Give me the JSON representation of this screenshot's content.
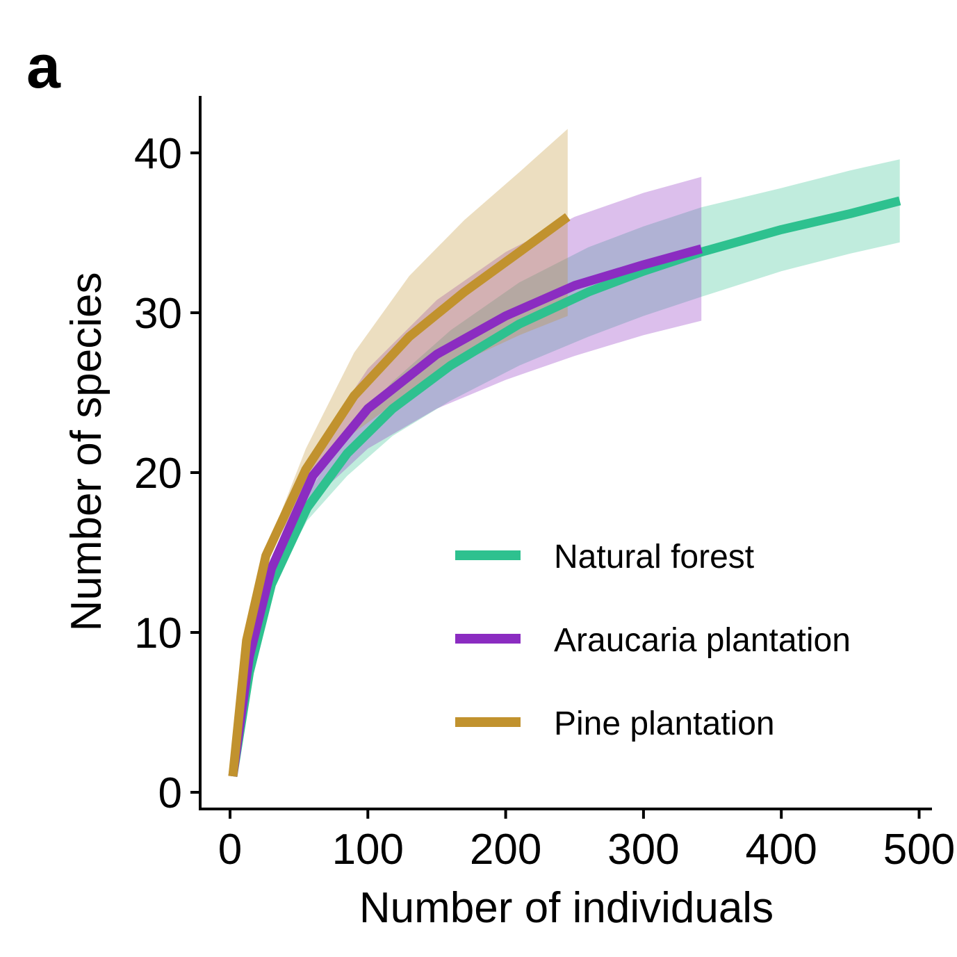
{
  "panel_label": "a",
  "chart_data": {
    "type": "line",
    "title": "",
    "xlabel": "Number of individuals",
    "ylabel": "Number of species",
    "xlim": [
      -22,
      505
    ],
    "ylim": [
      -1,
      43.5
    ],
    "xticks": [
      0,
      100,
      200,
      300,
      400,
      500
    ],
    "yticks": [
      0,
      10,
      20,
      30,
      40
    ],
    "xtick_labels": [
      "0",
      "100",
      "200",
      "300",
      "400",
      "500"
    ],
    "ytick_labels": [
      "0",
      "10",
      "20",
      "30",
      "40"
    ],
    "grid": false,
    "legend_position": "bottom-right",
    "series": [
      {
        "name": "Natural forest",
        "color": "#2EC18F",
        "x": [
          2,
          14,
          30,
          56,
          85,
          118,
          160,
          210,
          260,
          300,
          342,
          400,
          450,
          486
        ],
        "y": [
          1.0,
          7.5,
          13.0,
          17.8,
          21.2,
          24.0,
          26.7,
          29.3,
          31.3,
          32.6,
          33.8,
          35.2,
          36.2,
          37.0
        ],
        "lower": [
          1.0,
          7.2,
          12.8,
          17.0,
          19.8,
          22.3,
          24.5,
          26.7,
          28.5,
          29.8,
          31.0,
          32.6,
          33.7,
          34.4
        ],
        "upper": [
          1.0,
          7.8,
          13.2,
          18.6,
          22.6,
          25.7,
          28.9,
          31.9,
          34.1,
          35.4,
          36.6,
          37.8,
          38.9,
          39.6
        ]
      },
      {
        "name": "Araucaria plantation",
        "color": "#8B2CC1",
        "x": [
          2,
          14,
          30,
          60,
          100,
          150,
          200,
          250,
          300,
          342
        ],
        "y": [
          1.0,
          8.5,
          14.0,
          19.8,
          24.0,
          27.4,
          29.8,
          31.7,
          33.0,
          34.0
        ],
        "lower": [
          1.0,
          8.2,
          13.5,
          18.3,
          21.5,
          24.0,
          25.8,
          27.3,
          28.6,
          29.5
        ],
        "upper": [
          1.0,
          8.8,
          14.5,
          21.3,
          26.5,
          30.8,
          33.8,
          36.0,
          37.5,
          38.5
        ]
      },
      {
        "name": "Pine plantation",
        "color": "#C1922E",
        "x": [
          2,
          12,
          26,
          55,
          90,
          130,
          170,
          210,
          245
        ],
        "y": [
          1.0,
          9.5,
          14.8,
          20.2,
          24.8,
          28.5,
          31.3,
          33.8,
          36.0
        ],
        "lower": [
          1.0,
          9.3,
          14.5,
          19.0,
          22.5,
          25.0,
          27.0,
          28.6,
          29.8
        ],
        "upper": [
          1.0,
          9.7,
          15.1,
          21.5,
          27.5,
          32.3,
          35.8,
          38.8,
          41.5
        ]
      }
    ]
  }
}
